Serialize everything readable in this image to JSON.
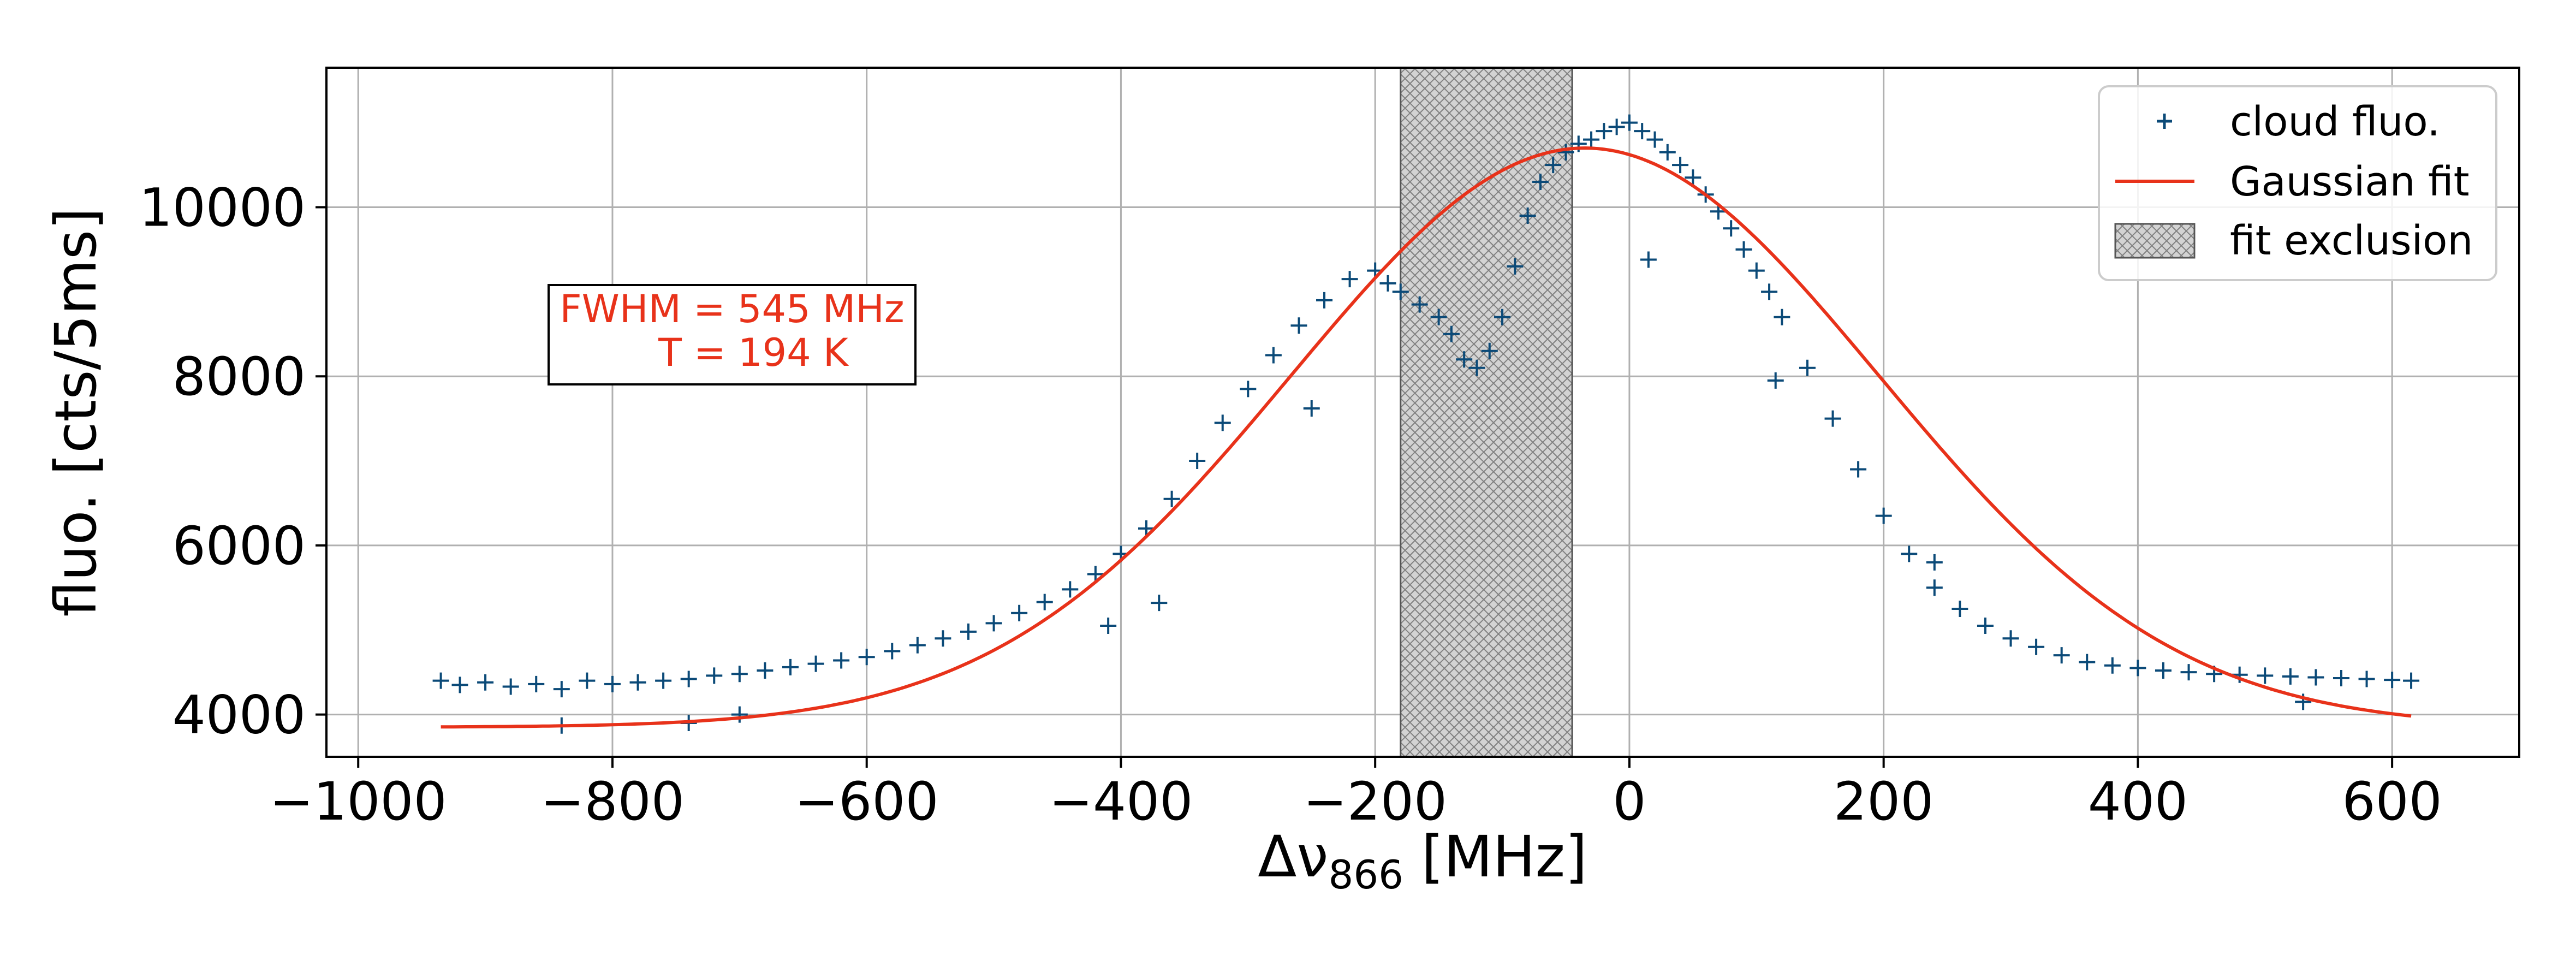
{
  "chart_data": {
    "type": "scatter",
    "xlabel_main": "Δν",
    "xlabel_sub": "866",
    "xlabel_unit": " [MHz]",
    "ylabel": "fluo. [cts/5ms]",
    "xlim": [
      -1025,
      700
    ],
    "ylim": [
      3500,
      11650
    ],
    "xticks": [
      -1000,
      -800,
      -600,
      -400,
      -200,
      0,
      200,
      400,
      600
    ],
    "xtick_labels": [
      "−1000",
      "−800",
      "−600",
      "−400",
      "−200",
      "0",
      "200",
      "400",
      "600"
    ],
    "yticks": [
      4000,
      6000,
      8000,
      10000
    ],
    "ytick_labels": [
      "4000",
      "6000",
      "8000",
      "10000"
    ],
    "grid": true,
    "legend_position": "top-right",
    "annotation": {
      "line1": "FWHM = 545 MHz",
      "line2": "T = 194 K"
    },
    "exclusion_region": {
      "name": "fit exclusion",
      "x_range": [
        -180,
        -45
      ]
    },
    "fit": {
      "name": "Gaussian fit",
      "color": "#e8321a",
      "x_range": [
        -935,
        615
      ],
      "amplitude": 6850,
      "center": -35,
      "fwhm": 545,
      "offset": 3850
    },
    "series": [
      {
        "name": "cloud fluo.",
        "marker": "+",
        "color": "#0b4a78",
        "x": [
          -935,
          -920,
          -900,
          -880,
          -860,
          -840,
          -820,
          -800,
          -780,
          -760,
          -740,
          -720,
          -700,
          -680,
          -660,
          -640,
          -620,
          -600,
          -580,
          -560,
          -540,
          -520,
          -500,
          -480,
          -460,
          -440,
          -420,
          -400,
          -380,
          -360,
          -340,
          -320,
          -300,
          -280,
          -260,
          -240,
          -220,
          -200,
          -190,
          -180,
          -165,
          -150,
          -140,
          -130,
          -120,
          -110,
          -100,
          -90,
          -80,
          -70,
          -60,
          -50,
          -40,
          -30,
          -20,
          -10,
          0,
          10,
          20,
          30,
          40,
          50,
          60,
          70,
          80,
          90,
          100,
          110,
          120,
          140,
          160,
          180,
          200,
          220,
          240,
          260,
          280,
          300,
          320,
          340,
          360,
          380,
          400,
          420,
          440,
          460,
          480,
          500,
          520,
          540,
          560,
          580,
          600,
          615,
          -840,
          -740,
          -700,
          -410,
          -370,
          -250,
          15,
          115,
          240,
          530
        ],
        "y": [
          4400,
          4350,
          4380,
          4330,
          4360,
          4300,
          4400,
          4360,
          4380,
          4400,
          4420,
          4460,
          4480,
          4520,
          4560,
          4600,
          4640,
          4680,
          4750,
          4820,
          4900,
          4980,
          5080,
          5200,
          5330,
          5480,
          5660,
          5900,
          6200,
          6550,
          7000,
          7450,
          7850,
          8250,
          8600,
          8900,
          9150,
          9250,
          9100,
          9000,
          8850,
          8700,
          8500,
          8200,
          8100,
          8300,
          8700,
          9300,
          9900,
          10300,
          10500,
          10650,
          10750,
          10800,
          10900,
          10950,
          11000,
          10900,
          10800,
          10650,
          10500,
          10350,
          10150,
          9950,
          9750,
          9500,
          9250,
          9000,
          8700,
          8100,
          7500,
          6900,
          6350,
          5900,
          5500,
          5250,
          5050,
          4900,
          4800,
          4700,
          4620,
          4580,
          4550,
          4520,
          4500,
          4480,
          4470,
          4460,
          4450,
          4440,
          4430,
          4420,
          4410,
          4400,
          3870,
          3900,
          4000,
          5050,
          5320,
          7620,
          9380,
          7950,
          5800,
          4150
        ]
      }
    ]
  }
}
